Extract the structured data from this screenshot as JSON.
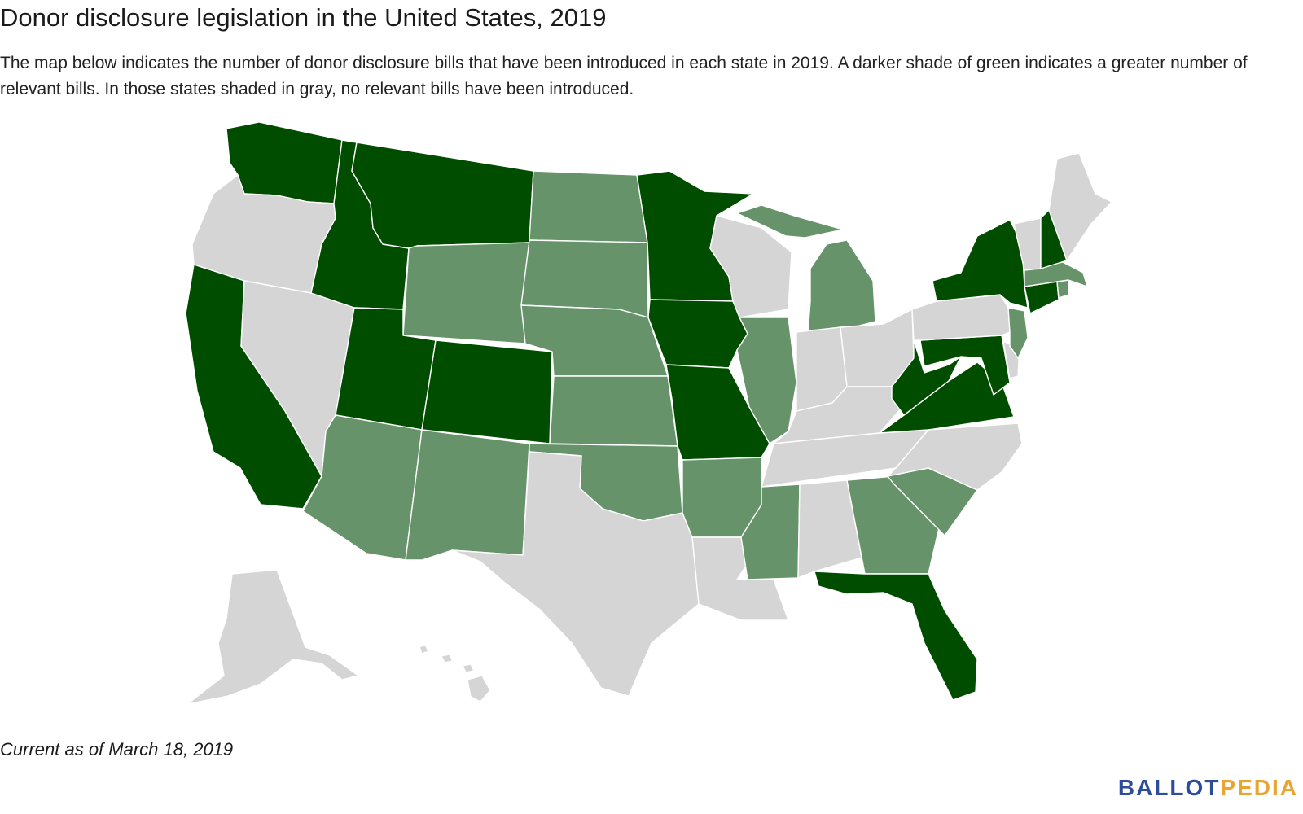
{
  "header": {
    "title": "Donor disclosure legislation in the United States, 2019",
    "subtitle": "The map below indicates the number of donor disclosure bills that have been introduced in each state in 2019. A darker shade of green indicates a greater number of relevant bills. In those states shaded in gray, no relevant bills have been introduced."
  },
  "colors": {
    "none": "#d5d5d5",
    "some": "#66936a",
    "many": "#004d00",
    "logo_blue": "#2d4d9c",
    "logo_orange": "#e8a534"
  },
  "map": {
    "states": [
      {
        "name": "WA",
        "level": "many"
      },
      {
        "name": "OR",
        "level": "none"
      },
      {
        "name": "CA",
        "level": "many"
      },
      {
        "name": "NV",
        "level": "none"
      },
      {
        "name": "ID",
        "level": "many"
      },
      {
        "name": "MT",
        "level": "many"
      },
      {
        "name": "WY",
        "level": "some"
      },
      {
        "name": "UT",
        "level": "many"
      },
      {
        "name": "CO",
        "level": "many"
      },
      {
        "name": "AZ",
        "level": "some"
      },
      {
        "name": "NM",
        "level": "some"
      },
      {
        "name": "ND",
        "level": "some"
      },
      {
        "name": "SD",
        "level": "some"
      },
      {
        "name": "NE",
        "level": "some"
      },
      {
        "name": "KS",
        "level": "some"
      },
      {
        "name": "OK",
        "level": "some"
      },
      {
        "name": "TX",
        "level": "none"
      },
      {
        "name": "MN",
        "level": "many"
      },
      {
        "name": "IA",
        "level": "many"
      },
      {
        "name": "MO",
        "level": "many"
      },
      {
        "name": "AR",
        "level": "some"
      },
      {
        "name": "LA",
        "level": "none"
      },
      {
        "name": "WI",
        "level": "none"
      },
      {
        "name": "IL",
        "level": "some"
      },
      {
        "name": "MI",
        "level": "some"
      },
      {
        "name": "IN",
        "level": "none"
      },
      {
        "name": "OH",
        "level": "none"
      },
      {
        "name": "KY",
        "level": "none"
      },
      {
        "name": "TN",
        "level": "none"
      },
      {
        "name": "MS",
        "level": "some"
      },
      {
        "name": "AL",
        "level": "none"
      },
      {
        "name": "GA",
        "level": "some"
      },
      {
        "name": "FL",
        "level": "many"
      },
      {
        "name": "SC",
        "level": "some"
      },
      {
        "name": "NC",
        "level": "none"
      },
      {
        "name": "VA",
        "level": "many"
      },
      {
        "name": "WV",
        "level": "many"
      },
      {
        "name": "MD",
        "level": "many"
      },
      {
        "name": "DE",
        "level": "none"
      },
      {
        "name": "PA",
        "level": "none"
      },
      {
        "name": "NJ",
        "level": "some"
      },
      {
        "name": "NY",
        "level": "many"
      },
      {
        "name": "CT",
        "level": "many"
      },
      {
        "name": "RI",
        "level": "some"
      },
      {
        "name": "MA",
        "level": "some"
      },
      {
        "name": "VT",
        "level": "none"
      },
      {
        "name": "NH",
        "level": "many"
      },
      {
        "name": "ME",
        "level": "none"
      },
      {
        "name": "AK",
        "level": "none"
      },
      {
        "name": "HI",
        "level": "none"
      }
    ]
  },
  "footer": {
    "note": "Current as of March 18, 2019",
    "logo_part_a": "BALLOT",
    "logo_part_b": "PEDIA"
  }
}
